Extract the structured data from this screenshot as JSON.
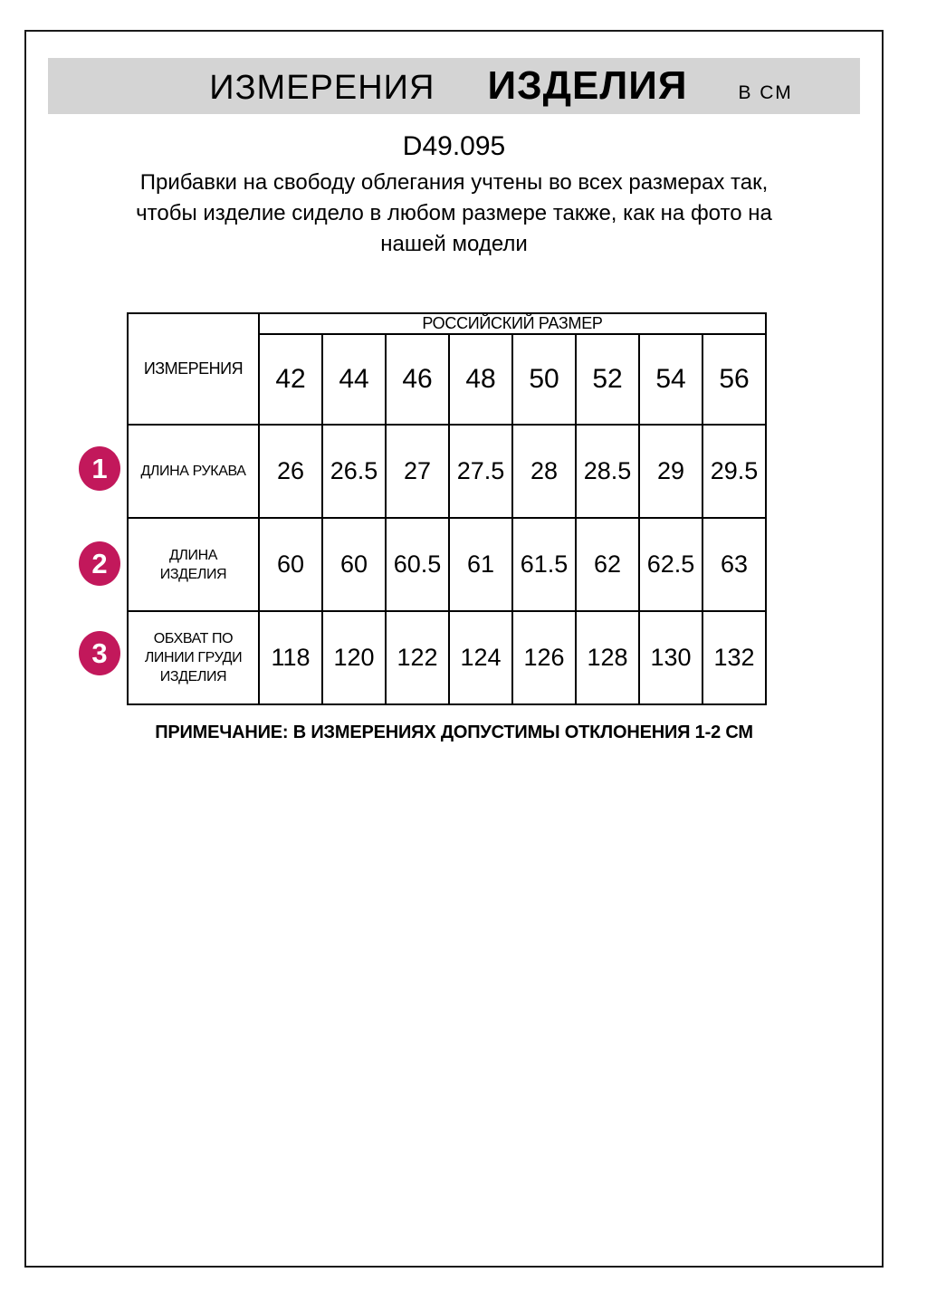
{
  "header": {
    "title_word1": "ИЗМЕРЕНИЯ",
    "title_word2": "ИЗДЕЛИЯ",
    "title_unit": "В СМ",
    "bar_color": "#d4d4d4"
  },
  "article_code": "D49.095",
  "description": "Прибавки на свободу облегания учтены во всех размерах так, чтобы изделие сидело в любом размере также, как на фото на нашей модели",
  "table": {
    "corner_header": "ИЗМЕРЕНИЯ",
    "group_header": "РОССИЙСКИЙ РАЗМЕР",
    "sizes": [
      "42",
      "44",
      "46",
      "48",
      "50",
      "52",
      "54",
      "56"
    ],
    "rows": [
      {
        "num": "1",
        "label": "ДЛИНА РУКАВА",
        "values": [
          "26",
          "26.5",
          "27",
          "27.5",
          "28",
          "28.5",
          "29",
          "29.5"
        ]
      },
      {
        "num": "2",
        "label": "ДЛИНА\nИЗДЕЛИЯ",
        "values": [
          "60",
          "60",
          "60.5",
          "61",
          "61.5",
          "62",
          "62.5",
          "63"
        ]
      },
      {
        "num": "3",
        "label": "ОБХВАТ ПО\nЛИНИИ ГРУДИ\nИЗДЕЛИЯ",
        "values": [
          "118",
          "120",
          "122",
          "124",
          "126",
          "128",
          "130",
          "132"
        ]
      }
    ]
  },
  "note": "ПРИМЕЧАНИЕ: В ИЗМЕРЕНИЯХ ДОПУСТИМЫ ОТКЛОНЕНИЯ 1-2 СМ",
  "colors": {
    "badge": "#c2185b",
    "header_bar": "#d4d4d4",
    "border": "#000000"
  }
}
